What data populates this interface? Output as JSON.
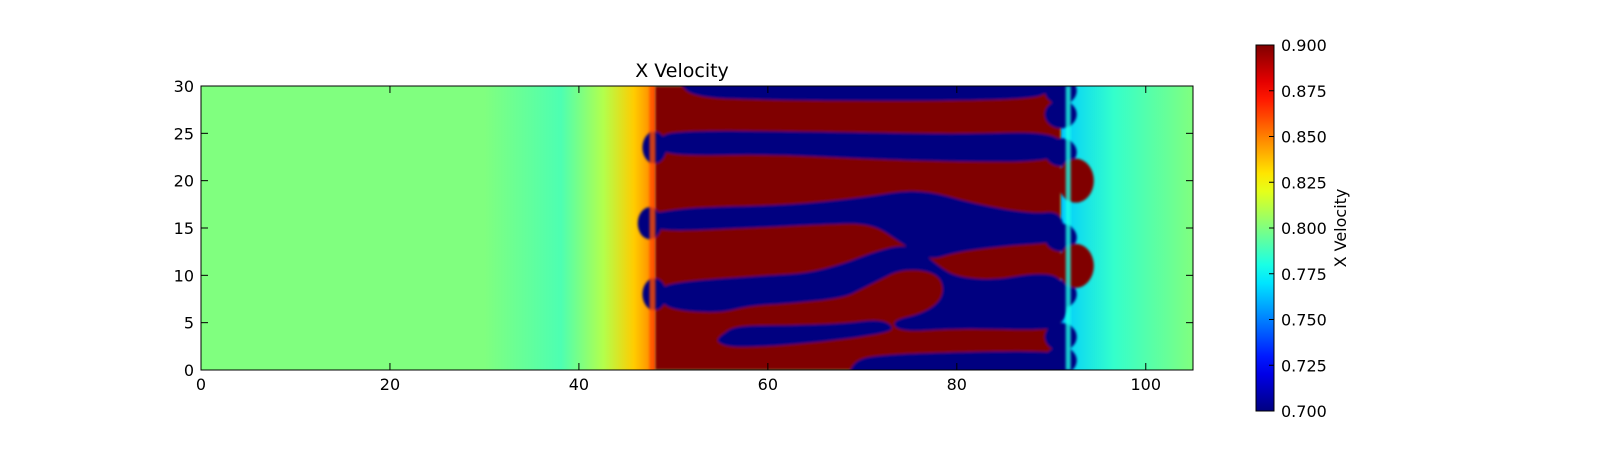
{
  "chart_data": {
    "type": "heatmap",
    "title": "X Velocity",
    "xlabel": "",
    "ylabel": "",
    "xlim": [
      0,
      105
    ],
    "ylim": [
      0,
      30
    ],
    "x_ticks": [
      0,
      20,
      40,
      60,
      80,
      100
    ],
    "y_ticks": [
      0,
      5,
      10,
      15,
      20,
      25,
      30
    ],
    "grid": false,
    "colormap": "jet",
    "colorbar": {
      "label": "X Velocity",
      "range": [
        0.7,
        0.9
      ],
      "ticks": [
        "0.700",
        "0.725",
        "0.750",
        "0.775",
        "0.800",
        "0.825",
        "0.850",
        "0.875",
        "0.900"
      ],
      "placement": "right"
    },
    "field": {
      "background_value": 0.8,
      "upstream_gradient": {
        "x_start": 30,
        "x_end": 48,
        "value_at_front": 0.85
      },
      "interface_x": 48,
      "downstream_x": 91,
      "high_value": 0.9,
      "low_value": 0.7,
      "bands": [
        {
          "value": 0.9,
          "y_range": [
            0,
            4
          ],
          "x_range": [
            48,
            68
          ]
        },
        {
          "value": 0.7,
          "y_range": [
            2,
            5.5
          ],
          "x_range": [
            55,
            73
          ]
        },
        {
          "value": 0.9,
          "y_range": [
            0,
            3
          ],
          "x_range": [
            69,
            91
          ]
        },
        {
          "value": 0.7,
          "y_range": [
            0,
            2
          ],
          "x_range": [
            68,
            91
          ]
        },
        {
          "value": 0.9,
          "y_range": [
            4,
            8
          ],
          "x_range": [
            52,
            77
          ]
        },
        {
          "value": 0.7,
          "y_range": [
            5,
            9
          ],
          "x_range": [
            48,
            58
          ]
        },
        {
          "value": 0.9,
          "y_range": [
            9,
            13
          ],
          "x_range": [
            48,
            78
          ]
        },
        {
          "value": 0.7,
          "y_range": [
            13,
            17
          ],
          "x_range": [
            48,
            91
          ]
        },
        {
          "value": 0.9,
          "y_range": [
            17,
            22
          ],
          "x_range": [
            48,
            93
          ]
        },
        {
          "value": 0.7,
          "y_range": [
            22,
            25
          ],
          "x_range": [
            48,
            91
          ]
        },
        {
          "value": 0.9,
          "y_range": [
            25,
            28
          ],
          "x_range": [
            49,
            90
          ]
        },
        {
          "value": 0.7,
          "y_range": [
            28,
            30
          ],
          "x_range": [
            51,
            89
          ]
        }
      ],
      "downstream_blue_lobes_y": [
        1,
        3.5,
        8,
        14,
        23,
        27,
        29.5
      ],
      "downstream_red_lobes_y": [
        11,
        20
      ]
    }
  }
}
